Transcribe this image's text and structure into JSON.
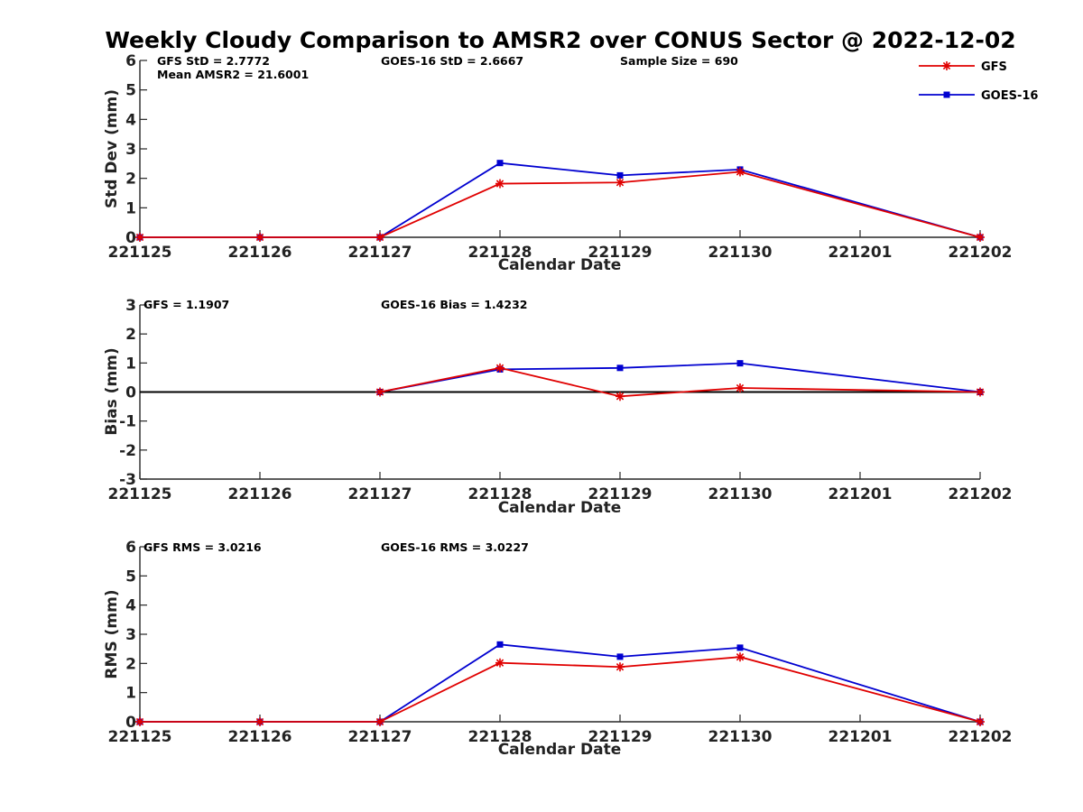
{
  "figure": {
    "title": "Weekly Cloudy Comparison to AMSR2 over CONUS Sector @ 2022-12-02",
    "legend": {
      "placement": "top-right",
      "entries": [
        {
          "name": "GFS",
          "color": "#e00000",
          "marker": "asterisk"
        },
        {
          "name": "GOES-16",
          "color": "#0000d0",
          "marker": "square"
        }
      ]
    }
  },
  "chart_data": [
    {
      "type": "line",
      "xlabel": "Calendar Date",
      "ylabel": "Std Dev (mm)",
      "ylim": [
        0,
        6
      ],
      "yticks": [
        0,
        1,
        2,
        3,
        4,
        5,
        6
      ],
      "x_tick_labels": [
        "221125",
        "221126",
        "221127",
        "221128",
        "221129",
        "221130",
        "221201",
        "221202"
      ],
      "zero_line": false,
      "annotations": [
        "GFS StD = 2.7772",
        "GOES-16 StD = 2.6667",
        "Sample Size = 690",
        "Mean AMSR2 = 21.6001"
      ],
      "series": [
        {
          "name": "GFS",
          "color": "#e00000",
          "marker": "asterisk",
          "x": [
            "221125",
            "221126",
            "221127",
            "221128",
            "221129",
            "221130",
            "221201",
            "221202"
          ],
          "values": [
            0,
            0,
            0,
            1.82,
            1.86,
            2.22,
            null,
            0
          ]
        },
        {
          "name": "GOES-16",
          "color": "#0000d0",
          "marker": "square",
          "x": [
            "221125",
            "221126",
            "221127",
            "221128",
            "221129",
            "221130",
            "221201",
            "221202"
          ],
          "values": [
            0,
            0,
            0,
            2.52,
            2.1,
            2.3,
            null,
            0
          ]
        }
      ]
    },
    {
      "type": "line",
      "xlabel": "Calendar Date",
      "ylabel": "Bias (mm)",
      "ylim": [
        -3,
        3
      ],
      "yticks": [
        -3,
        -2,
        -1,
        0,
        1,
        2,
        3
      ],
      "x_tick_labels": [
        "221125",
        "221126",
        "221127",
        "221128",
        "221129",
        "221130",
        "221201",
        "221202"
      ],
      "zero_line": true,
      "annotations": [
        "GFS = 1.1907",
        "GOES-16 Bias  = 1.4232"
      ],
      "series": [
        {
          "name": "GFS",
          "color": "#e00000",
          "marker": "asterisk",
          "x": [
            "221127",
            "221128",
            "221129",
            "221130",
            "221202"
          ],
          "values": [
            0,
            0.83,
            -0.15,
            0.14,
            0
          ]
        },
        {
          "name": "GOES-16",
          "color": "#0000d0",
          "marker": "square",
          "x": [
            "221127",
            "221128",
            "221129",
            "221130",
            "221202"
          ],
          "values": [
            0,
            0.78,
            0.83,
            0.99,
            0
          ]
        }
      ]
    },
    {
      "type": "line",
      "xlabel": "Calendar Date",
      "ylabel": "RMS (mm)",
      "ylim": [
        0,
        6
      ],
      "yticks": [
        0,
        1,
        2,
        3,
        4,
        5,
        6
      ],
      "x_tick_labels": [
        "221125",
        "221126",
        "221127",
        "221128",
        "221129",
        "221130",
        "221201",
        "221202"
      ],
      "zero_line": false,
      "annotations": [
        "GFS RMS = 3.0216",
        "GOES-16 RMS = 3.0227"
      ],
      "series": [
        {
          "name": "GFS",
          "color": "#e00000",
          "marker": "asterisk",
          "x": [
            "221125",
            "221126",
            "221127",
            "221128",
            "221129",
            "221130",
            "221202"
          ],
          "values": [
            0,
            0,
            0,
            2.02,
            1.88,
            2.22,
            0
          ]
        },
        {
          "name": "GOES-16",
          "color": "#0000d0",
          "marker": "square",
          "x": [
            "221125",
            "221126",
            "221127",
            "221128",
            "221129",
            "221130",
            "221202"
          ],
          "values": [
            0,
            0,
            0,
            2.65,
            2.23,
            2.54,
            0
          ]
        }
      ]
    }
  ]
}
